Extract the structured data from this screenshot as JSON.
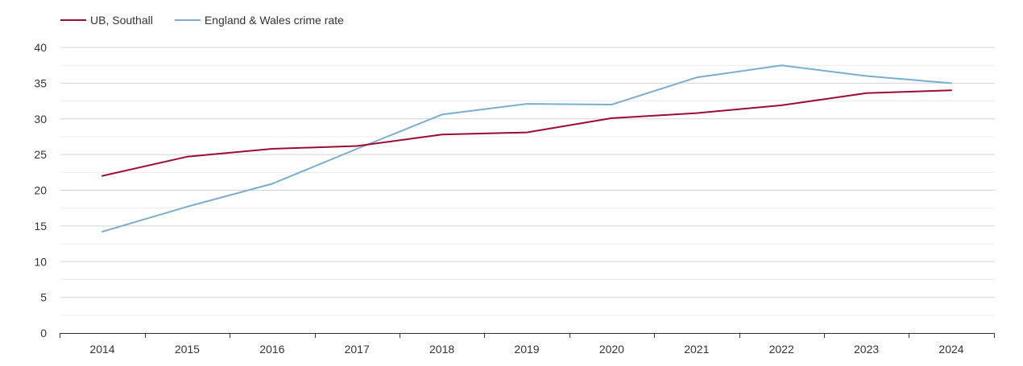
{
  "chart_data": {
    "type": "line",
    "title": "",
    "xlabel": "",
    "ylabel": "",
    "x": [
      2014,
      2015,
      2016,
      2017,
      2018,
      2019,
      2020,
      2021,
      2022,
      2023,
      2024
    ],
    "ylim": [
      0,
      40
    ],
    "yticks": [
      0,
      5,
      10,
      15,
      20,
      25,
      30,
      35,
      40
    ],
    "grid": true,
    "legend_placement": "top-left",
    "series": [
      {
        "name": "UB, Southall",
        "color": "#9b0c35",
        "values": [
          22.0,
          24.7,
          25.8,
          26.2,
          27.8,
          28.1,
          30.1,
          30.8,
          31.9,
          33.6,
          34.0
        ]
      },
      {
        "name": "England & Wales crime rate",
        "color": "#7badcc",
        "values": [
          14.2,
          17.7,
          20.9,
          25.8,
          30.6,
          32.1,
          32.0,
          35.8,
          37.5,
          36.0,
          35.0
        ]
      }
    ]
  }
}
